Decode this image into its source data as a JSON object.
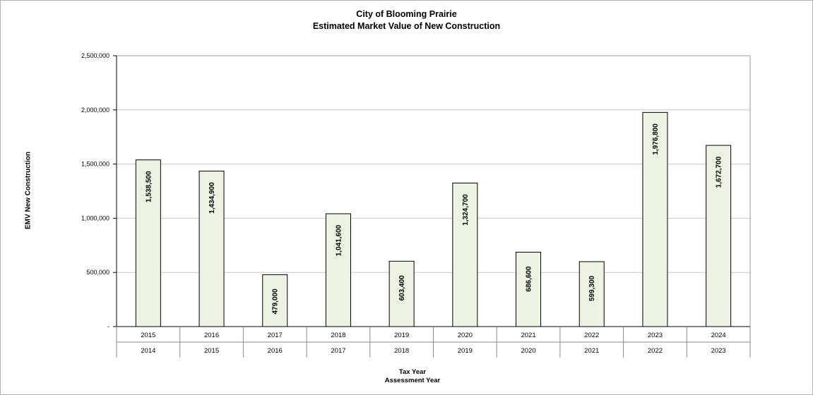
{
  "chart_data": {
    "type": "bar",
    "title": "City of Blooming Prairie",
    "subtitle": "Estimated Market Value of New Construction",
    "ylabel": "EMV New Construction",
    "xlabel": "Tax Year",
    "xlabel2": "Assessment Year",
    "categories": [
      "2015",
      "2016",
      "2017",
      "2018",
      "2019",
      "2020",
      "2021",
      "2022",
      "2023",
      "2024"
    ],
    "categories2": [
      "2014",
      "2015",
      "2016",
      "2017",
      "2018",
      "2019",
      "2020",
      "2021",
      "2022",
      "2023"
    ],
    "values": [
      1538500,
      1434900,
      479000,
      1041600,
      603400,
      1324700,
      686600,
      599300,
      1976800,
      1672700
    ],
    "value_labels": [
      "1,538,500",
      "1,434,900",
      "479,000",
      "1,041,600",
      "603,400",
      "1,324,700",
      "686,600",
      "599,300",
      "1,976,800",
      "1,672,700"
    ],
    "ylim": [
      0,
      2500000
    ],
    "yticks": [
      0,
      500000,
      1000000,
      1500000,
      2000000,
      2500000
    ],
    "ytick_labels": [
      "-",
      "500,000",
      "1,000,000",
      "1,500,000",
      "2,000,000",
      "2,500,000"
    ],
    "grid": true,
    "bar_color": "#eef2e2",
    "bar_edge_color": "#000000"
  }
}
